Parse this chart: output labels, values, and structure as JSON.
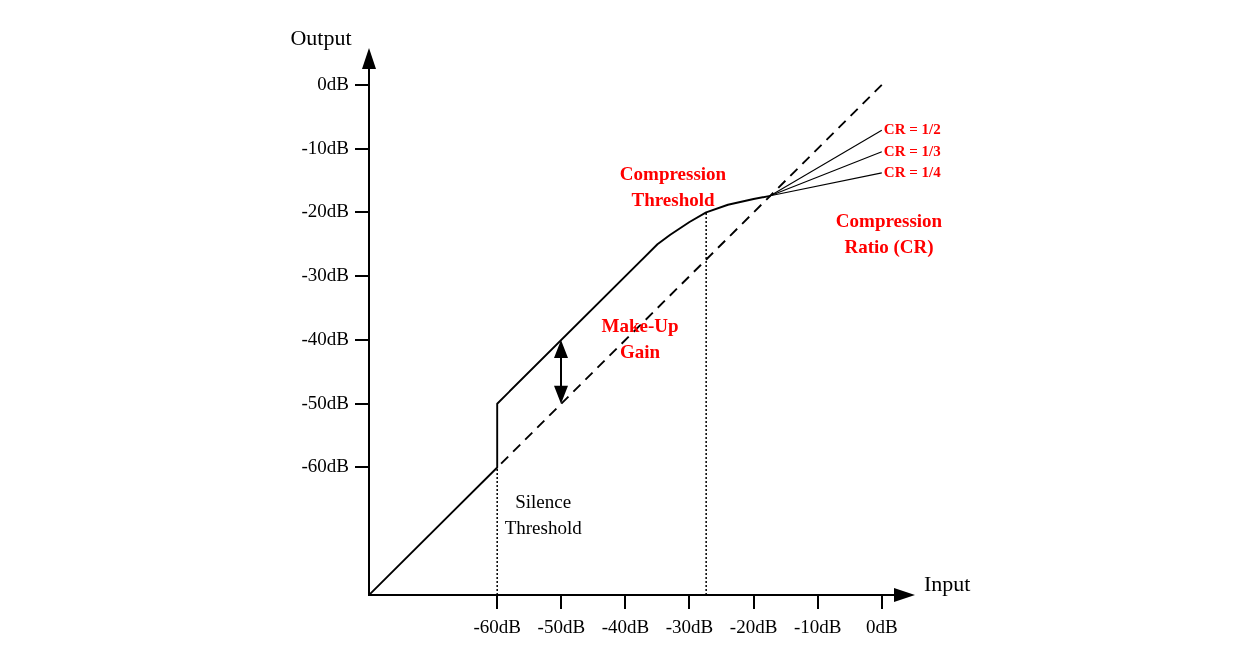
{
  "chart_data": {
    "type": "line",
    "xlabel": "Input",
    "ylabel": "Output",
    "xlim": [
      -80,
      4.4
    ],
    "ylim": [
      -80,
      5
    ],
    "xticks": [
      {
        "value": -60,
        "label": "-60dB"
      },
      {
        "value": -50,
        "label": "-50dB"
      },
      {
        "value": -40,
        "label": "-40dB"
      },
      {
        "value": -30,
        "label": "-30dB"
      },
      {
        "value": -20,
        "label": "-20dB"
      },
      {
        "value": -10,
        "label": "-10dB"
      },
      {
        "value": 0,
        "label": "0dB"
      }
    ],
    "yticks": [
      {
        "value": 0,
        "label": "0dB"
      },
      {
        "value": -10,
        "label": "-10dB"
      },
      {
        "value": -20,
        "label": "-20dB"
      },
      {
        "value": -30,
        "label": "-30dB"
      },
      {
        "value": -40,
        "label": "-40dB"
      },
      {
        "value": -50,
        "label": "-50dB"
      },
      {
        "value": -60,
        "label": "-60dB"
      }
    ],
    "grid": false,
    "legend": false,
    "marker": "none",
    "series": [
      {
        "color": "#000000",
        "line_style": "solid",
        "x": [
          -80,
          -60,
          -60,
          -35,
          -33,
          -30,
          -27.4,
          -24,
          -20,
          -17.4
        ],
        "values": [
          -80,
          -60,
          -50,
          -25,
          -23.5,
          -21.5,
          -20,
          -18.8,
          -17.9,
          -17.4
        ]
      },
      {
        "color": "#000000",
        "line_style": "dashed",
        "x": [
          0,
          -60
        ],
        "values": [
          0,
          -60
        ]
      },
      {
        "name": "CR = 1/2",
        "color": "#000000",
        "line_style": "solid",
        "x": [
          -17.4,
          0
        ],
        "values": [
          -17.4,
          -7.1
        ]
      },
      {
        "name": "CR = 1/3",
        "color": "#000000",
        "line_style": "solid",
        "x": [
          -17.4,
          0
        ],
        "values": [
          -17.4,
          -10.5
        ]
      },
      {
        "name": "CR = 1/4",
        "color": "#000000",
        "line_style": "solid",
        "x": [
          -17.4,
          0
        ],
        "values": [
          -17.4,
          -13.8
        ]
      }
    ],
    "ref_lines": [
      {
        "axis": "x",
        "value": -60,
        "label": "Silence Threshold",
        "color": "#000000",
        "line_style": "dotted"
      },
      {
        "axis": "x",
        "value": -27.4,
        "color": "#000000",
        "line_style": "dotted"
      }
    ],
    "annotations": [
      "Compression Threshold",
      "Make-Up Gain",
      "Compression Ratio (CR)"
    ]
  }
}
